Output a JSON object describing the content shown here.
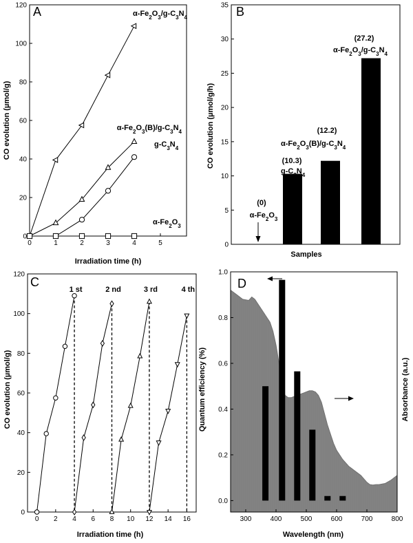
{
  "chart_data": [
    {
      "panel": "A",
      "type": "line",
      "xlabel": "Irradiation time (h)",
      "ylabel": "CO evolution (µmol/g)",
      "xlim": [
        0,
        6
      ],
      "ylim": [
        0,
        120
      ],
      "xticks": [
        0,
        1,
        2,
        3,
        4,
        5
      ],
      "yticks": [
        0,
        20,
        40,
        60,
        80,
        100,
        120
      ],
      "series": [
        {
          "label": [
            "α-Fe",
            "2",
            "O",
            "3",
            "/g-C",
            "3",
            "N",
            "4"
          ],
          "marker": "triangle-left",
          "x": [
            0,
            1,
            2,
            3,
            4
          ],
          "y": [
            0,
            39.5,
            57.5,
            83.5,
            109
          ]
        },
        {
          "label": [
            "α-Fe",
            "2",
            "O",
            "3",
            "(B)/g-C",
            "3",
            "N",
            "4"
          ],
          "marker": "triangle-up",
          "x": [
            0,
            1,
            2,
            3,
            4
          ],
          "y": [
            0,
            6.8,
            19,
            35.5,
            49
          ]
        },
        {
          "label": [
            "g-C",
            "3",
            "N",
            "4"
          ],
          "marker": "circle",
          "x": [
            0,
            1,
            2,
            3,
            4
          ],
          "y": [
            0,
            0,
            8.5,
            23.5,
            41
          ]
        },
        {
          "label": [
            "α-Fe",
            "2",
            "O",
            "3"
          ],
          "marker": "square",
          "x": [
            0,
            1,
            2,
            3,
            4
          ],
          "y": [
            0,
            0,
            0,
            0,
            0
          ]
        }
      ]
    },
    {
      "panel": "B",
      "type": "bar",
      "xlabel": "Samples",
      "ylabel": "CO evolution (µmol/g/h)",
      "ylim": [
        0,
        35
      ],
      "yticks": [
        0,
        5,
        10,
        15,
        20,
        25,
        30,
        35
      ],
      "values": [
        0,
        10.3,
        12.2,
        27.2
      ],
      "value_labels": [
        "(0)",
        "(10.3)",
        "(12.2)",
        "(27.2)"
      ],
      "categories": [
        [
          "α-Fe",
          "2",
          "O",
          "3"
        ],
        [
          "g-C",
          "3",
          "N",
          "4"
        ],
        [
          "α-Fe",
          "2",
          "O",
          "3",
          "(B)/g-C",
          "3",
          "N",
          "4"
        ],
        [
          "α-Fe",
          "2",
          "O",
          "3",
          "/g-C",
          "3",
          "N",
          "4"
        ]
      ]
    },
    {
      "panel": "C",
      "type": "line",
      "xlabel": "Irradiation time (h)",
      "ylabel": "CO evolution (µmol/g)",
      "xlim": [
        -1,
        17
      ],
      "ylim": [
        0,
        120
      ],
      "xticks": [
        0,
        2,
        4,
        6,
        8,
        10,
        12,
        14,
        16
      ],
      "yticks": [
        0,
        20,
        40,
        60,
        80,
        100,
        120
      ],
      "cycles": [
        {
          "label": "1 st",
          "marker": "circle",
          "x": [
            0,
            1,
            2,
            3,
            4
          ],
          "y": [
            0,
            39.5,
            57.5,
            83.5,
            109
          ]
        },
        {
          "label": "2 nd",
          "marker": "diamond",
          "x": [
            4,
            5,
            6,
            7,
            8
          ],
          "y": [
            0,
            37.5,
            54,
            85,
            105
          ]
        },
        {
          "label": "3 rd",
          "marker": "triangle-up",
          "x": [
            8,
            9,
            10,
            11,
            12
          ],
          "y": [
            0,
            36.5,
            53.5,
            78.5,
            106
          ]
        },
        {
          "label": "4 th",
          "marker": "triangle-down",
          "x": [
            12,
            13,
            14,
            15,
            16
          ],
          "y": [
            0,
            35,
            51,
            74.5,
            99
          ]
        }
      ]
    },
    {
      "panel": "D",
      "type": "bar",
      "xlabel": "Wavelength (nm)",
      "ylabel": "Quantum efficiency (%)",
      "ylabel_right": "Absorbance (a.u.)",
      "xlim": [
        250,
        800
      ],
      "ylim": [
        -0.05,
        1.0
      ],
      "xticks": [
        300,
        400,
        500,
        600,
        700,
        800
      ],
      "yticks": [
        0.0,
        0.2,
        0.4,
        0.6,
        0.8,
        1.0
      ],
      "ytick_labels": [
        "0.0",
        "0.2",
        "0.4",
        "0.6",
        "0.8",
        "1.0"
      ],
      "bars": {
        "x": [
          365,
          420,
          470,
          520,
          570,
          620
        ],
        "values": [
          0.5,
          0.965,
          0.565,
          0.31,
          0.02,
          0.02
        ]
      },
      "absorbance": {
        "x": [
          250,
          270,
          290,
          310,
          320,
          330,
          340,
          350,
          360,
          370,
          380,
          390,
          400,
          410,
          420,
          430,
          440,
          450,
          460,
          470,
          480,
          490,
          500,
          510,
          520,
          530,
          540,
          550,
          560,
          570,
          580,
          590,
          600,
          620,
          640,
          660,
          680,
          700,
          710,
          720,
          730,
          740,
          760,
          780,
          800
        ],
        "values": [
          0.92,
          0.9,
          0.88,
          0.875,
          0.89,
          0.88,
          0.86,
          0.84,
          0.82,
          0.8,
          0.78,
          0.74,
          0.68,
          0.6,
          0.5,
          0.46,
          0.45,
          0.45,
          0.455,
          0.46,
          0.465,
          0.47,
          0.475,
          0.48,
          0.48,
          0.475,
          0.46,
          0.43,
          0.38,
          0.33,
          0.29,
          0.25,
          0.22,
          0.18,
          0.15,
          0.13,
          0.11,
          0.08,
          0.07,
          0.068,
          0.07,
          0.07,
          0.075,
          0.09,
          0.11
        ]
      },
      "absorbance_color": "#808080",
      "bar_color": "#000000"
    }
  ]
}
